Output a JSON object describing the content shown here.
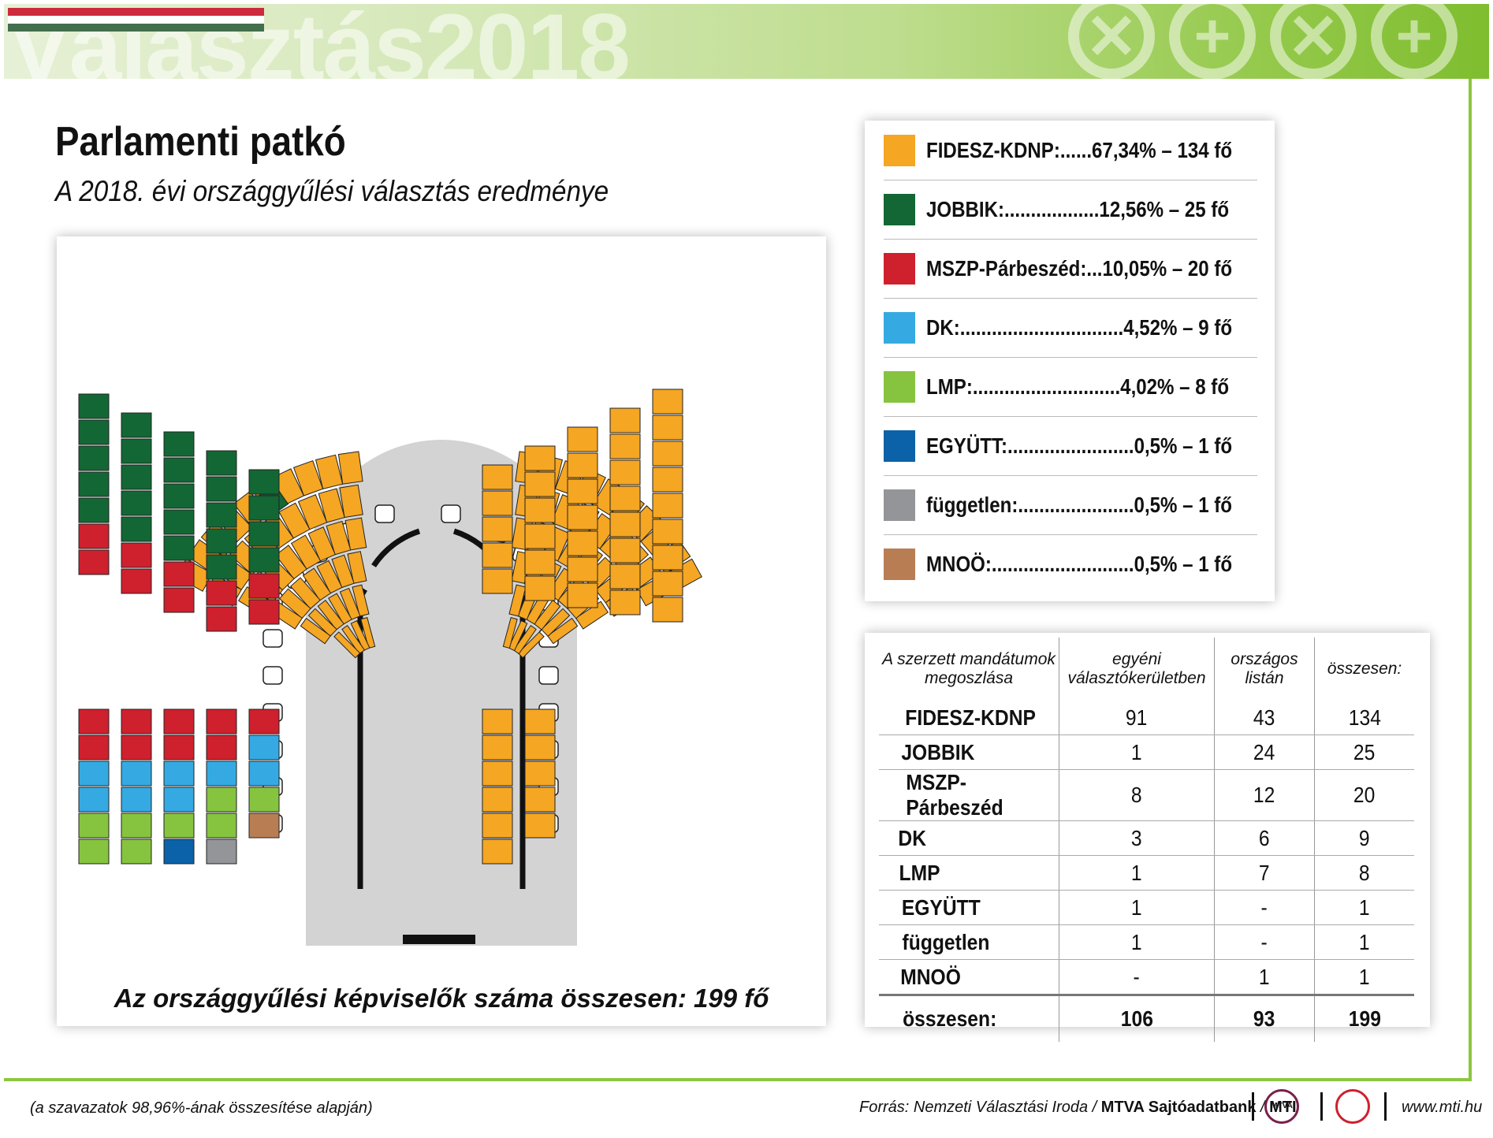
{
  "header": {
    "banner_text": "Választás2018",
    "flag_colors": [
      "#cd2a3e",
      "#ffffff",
      "#436f4d"
    ],
    "accent_color": "#8cc63f"
  },
  "title": "Parlamenti patkó",
  "subtitle": "A 2018. évi országgyűlési választás eredménye",
  "seat_caption": "Az országgyűlési képviselők száma összesen: 199 fő",
  "legend": [
    {
      "label": "FIDESZ-KDNP:......67,34% – 134 fő",
      "color": "#f5a623"
    },
    {
      "label": "JOBBIK:..................12,56% – 25 fő",
      "color": "#136734"
    },
    {
      "label": "MSZP-Párbeszéd:...10,05% – 20 fő",
      "color": "#cf202e"
    },
    {
      "label": "DK:...............................4,52% – 9 fő",
      "color": "#35aae2"
    },
    {
      "label": "LMP:............................4,02% – 8 fő",
      "color": "#86c440"
    },
    {
      "label": "EGYÜTT:........................0,5% – 1 fő",
      "color": "#0b62a8"
    },
    {
      "label": "független:......................0,5% – 1 fő",
      "color": "#939598"
    },
    {
      "label": "MNOÖ:...........................0,5% – 1 fő",
      "color": "#b97d54"
    }
  ],
  "table": {
    "headers": [
      "A szerzett mandátumok megoszlása",
      "egyéni választókerületben",
      "országos listán",
      "összesen:"
    ],
    "rows": [
      [
        "FIDESZ-KDNP",
        "91",
        "43",
        "134"
      ],
      [
        "JOBBIK",
        "1",
        "24",
        "25"
      ],
      [
        "MSZP-Párbeszéd",
        "8",
        "12",
        "20"
      ],
      [
        "DK",
        "3",
        "6",
        "9"
      ],
      [
        "LMP",
        "1",
        "7",
        "8"
      ],
      [
        "EGYÜTT",
        "1",
        "-",
        "1"
      ],
      [
        "független",
        "1",
        "-",
        "1"
      ],
      [
        "MNOÖ",
        "-",
        "1",
        "1"
      ]
    ],
    "total": [
      "összesen:",
      "106",
      "93",
      "199"
    ]
  },
  "footer": {
    "note": "(a szavazatok 98,96%-ának összesítése alapján)",
    "source_prefix": "Forrás: Nemzeti Választási Iroda / ",
    "source_bold": "MTVA Sajtóadatbank",
    "source_sep": " / ",
    "source_mti": "MTI",
    "logo_text": "MTVA",
    "url": "www.mti.hu"
  },
  "chart_data": {
    "type": "parliament",
    "total_seats": 199,
    "series": [
      {
        "name": "FIDESZ-KDNP",
        "seats": 134,
        "percent": 67.34,
        "color": "#f5a623"
      },
      {
        "name": "JOBBIK",
        "seats": 25,
        "percent": 12.56,
        "color": "#136734"
      },
      {
        "name": "MSZP-Párbeszéd",
        "seats": 20,
        "percent": 10.05,
        "color": "#cf202e"
      },
      {
        "name": "DK",
        "seats": 9,
        "percent": 4.52,
        "color": "#35aae2"
      },
      {
        "name": "LMP",
        "seats": 8,
        "percent": 4.02,
        "color": "#86c440"
      },
      {
        "name": "EGYÜTT",
        "seats": 1,
        "percent": 0.5,
        "color": "#0b62a8"
      },
      {
        "name": "független",
        "seats": 1,
        "percent": 0.5,
        "color": "#939598"
      },
      {
        "name": "MNOÖ",
        "seats": 1,
        "percent": 0.5,
        "color": "#b97d54"
      }
    ]
  }
}
